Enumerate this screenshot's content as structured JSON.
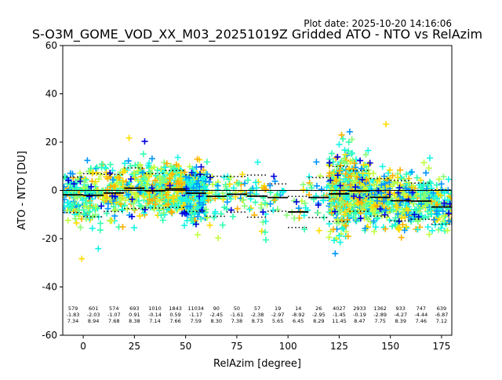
{
  "header": {
    "plot_date": "Plot date: 2025-10-20 14:16:06",
    "title": "S-O3M_GOME_VOD_XX_M03_20251019Z Gridded ATO - NTO vs RelAzim"
  },
  "colors": {
    "blue": "#0000dd",
    "azure": "#0096ff",
    "cyan": "#14f5e6",
    "spring": "#30ffb0",
    "lime": "#86ff76",
    "chartreuse": "#c0ff40",
    "yellow": "#ffdc00",
    "orange": "#ffb000",
    "median_line": "#000000"
  },
  "chart_data": {
    "type": "scatter",
    "title": "S-O3M_GOME_VOD_XX_M03_20251019Z Gridded ATO - NTO vs RelAzim",
    "xlabel": "RelAzim [degree]",
    "ylabel": "ATO - NTO [DU]",
    "xlim": [
      -10,
      180
    ],
    "ylim": [
      -60,
      60
    ],
    "xticks": [
      0,
      25,
      50,
      75,
      100,
      125,
      150,
      175
    ],
    "yticks": [
      -60,
      -40,
      -20,
      0,
      20,
      40,
      60
    ],
    "marker": "+",
    "grid": false,
    "bins": [
      {
        "x": -5,
        "count": "579",
        "mean": "-1.83",
        "std": "7.34"
      },
      {
        "x": 5,
        "count": "601",
        "mean": "-2.03",
        "std": "8.94"
      },
      {
        "x": 15,
        "count": "574",
        "mean": "-1.07",
        "std": "7.68"
      },
      {
        "x": 25,
        "count": "693",
        "mean": "0.91",
        "std": "8.38"
      },
      {
        "x": 35,
        "count": "1010",
        "mean": "-0.14",
        "std": "7.14"
      },
      {
        "x": 45,
        "count": "1843",
        "mean": "0.59",
        "std": "7.66"
      },
      {
        "x": 55,
        "count": "11034",
        "mean": "-1.17",
        "std": "7.59"
      },
      {
        "x": 65,
        "count": "90",
        "mean": "-2.45",
        "std": "8.30"
      },
      {
        "x": 75,
        "count": "50",
        "mean": "-1.61",
        "std": "7.38"
      },
      {
        "x": 85,
        "count": "57",
        "mean": "-2.38",
        "std": "8.73"
      },
      {
        "x": 95,
        "count": "19",
        "mean": "-2.97",
        "std": "5.65"
      },
      {
        "x": 105,
        "count": "14",
        "mean": "-8.92",
        "std": "6.45"
      },
      {
        "x": 115,
        "count": "26",
        "mean": "-2.95",
        "std": "8.29"
      },
      {
        "x": 125,
        "count": "4027",
        "mean": "-1.45",
        "std": "11.45"
      },
      {
        "x": 135,
        "count": "2933",
        "mean": "-0.19",
        "std": "8.47"
      },
      {
        "x": 145,
        "count": "1362",
        "mean": "-2.89",
        "std": "7.75"
      },
      {
        "x": 155,
        "count": "933",
        "mean": "-4.27",
        "std": "8.39"
      },
      {
        "x": 165,
        "count": "747",
        "mean": "-4.44",
        "std": "7.46"
      },
      {
        "x": 175,
        "count": "639",
        "mean": "-6.87",
        "std": "7.12"
      }
    ]
  }
}
